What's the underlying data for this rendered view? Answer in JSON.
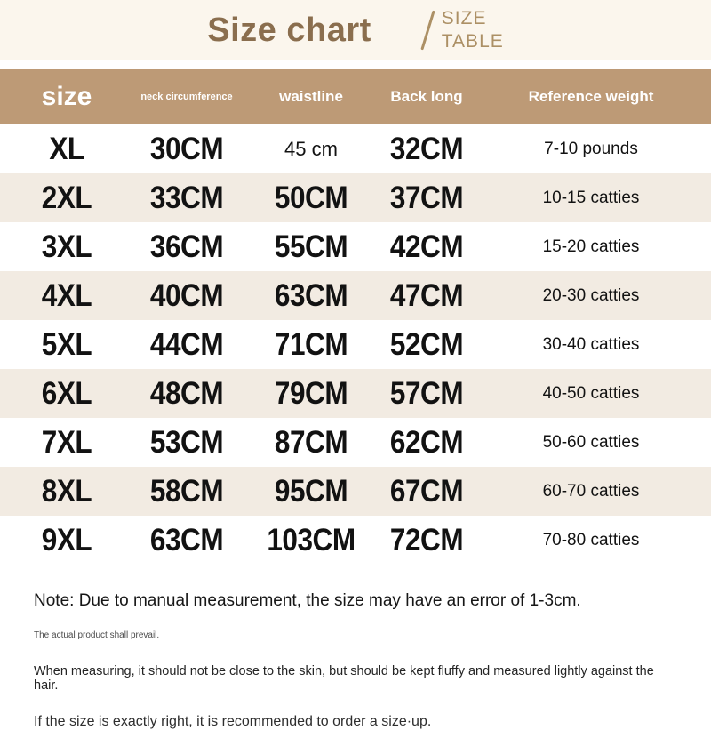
{
  "title": {
    "main": "Size chart",
    "side_line1": "SIZE",
    "side_line2": "TABLE"
  },
  "table": {
    "headers": [
      "size",
      "neck circumference",
      "waistline",
      "Back long",
      "Reference weight"
    ]
  },
  "chart_data": {
    "type": "table",
    "title": "Size chart",
    "columns": [
      "size",
      "neck circumference",
      "waistline",
      "Back long",
      "Reference weight"
    ],
    "rows": [
      [
        "XL",
        "30CM",
        "45 cm",
        "32CM",
        "7-10 pounds"
      ],
      [
        "2XL",
        "33CM",
        "50CM",
        "37CM",
        "10-15 catties"
      ],
      [
        "3XL",
        "36CM",
        "55CM",
        "42CM",
        "15-20 catties"
      ],
      [
        "4XL",
        "40CM",
        "63CM",
        "47CM",
        "20-30 catties"
      ],
      [
        "5XL",
        "44CM",
        "71CM",
        "52CM",
        "30-40 catties"
      ],
      [
        "6XL",
        "48CM",
        "79CM",
        "57CM",
        "40-50 catties"
      ],
      [
        "7XL",
        "53CM",
        "87CM",
        "62CM",
        "50-60 catties"
      ],
      [
        "8XL",
        "58CM",
        "95CM",
        "67CM",
        "60-70 catties"
      ],
      [
        "9XL",
        "63CM",
        "103CM",
        "72CM",
        "70-80 catties"
      ]
    ],
    "layout": {
      "alternating_row_shading": true,
      "header_position": "top"
    }
  },
  "notes": {
    "main": "Note: Due to manual measurement, the size may have an error of 1-3cm.",
    "small": "The actual product shall prevail.",
    "line2": "When measuring, it should not be close to the skin, but should be kept fluffy and measured lightly against the hair.",
    "line3": "If the size is exactly right, it is recommended to order a size·up."
  },
  "colors": {
    "header_bg": "#bd9a76",
    "row_alt_bg": "#f2ebe2",
    "banner_bg": "#fbf6ed",
    "title_color": "#8a6e4e",
    "side_title_color": "#ac9065"
  }
}
